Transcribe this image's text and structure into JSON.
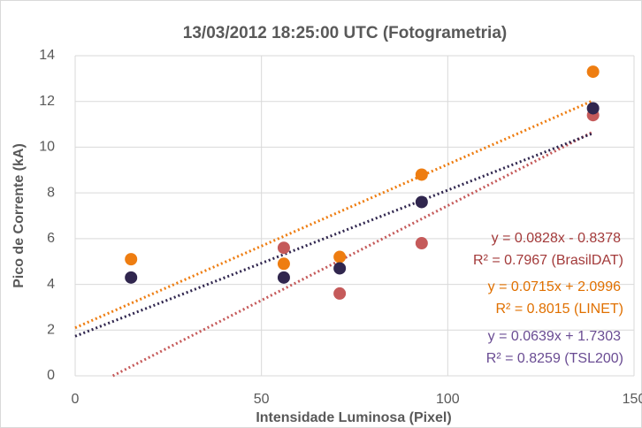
{
  "chart_data": {
    "type": "scatter",
    "title": "13/03/2012 18:25:00 UTC (Fotogrametria)",
    "xlabel": "Intensidade Luminosa (Pixel)",
    "ylabel": "Pico de Corrente (kA)",
    "xlim": [
      0,
      150
    ],
    "xticks": [
      0,
      50,
      100,
      150
    ],
    "ylim": [
      0,
      14
    ],
    "yticks": [
      0,
      2,
      4,
      6,
      8,
      10,
      12,
      14
    ],
    "grid": true,
    "series": [
      {
        "name": "BrasilDAT",
        "color": "#c55a5a",
        "label_color": "#a33a3a",
        "x": [
          56,
          71,
          93,
          139
        ],
        "values": [
          5.6,
          3.6,
          5.8,
          11.4
        ],
        "equation": "y = 0.0828x - 0.8378",
        "r_squared": "R² = 0.7967 (BrasilDAT)"
      },
      {
        "name": "LINET",
        "color": "#ee7d11",
        "label_color": "#e07000",
        "x": [
          15,
          56,
          71,
          93,
          139
        ],
        "values": [
          5.1,
          4.9,
          5.2,
          8.8,
          13.3
        ],
        "equation": "y = 0.0715x + 2.0996",
        "r_squared": "R² = 0.8015 (LINET)"
      },
      {
        "name": "TSL200",
        "color": "#30264e",
        "label_color": "#6a4c93",
        "x": [
          15,
          56,
          71,
          93,
          139
        ],
        "values": [
          4.3,
          4.3,
          4.7,
          7.6,
          11.7
        ],
        "equation": "y = 0.0639x + 1.7303",
        "r_squared": "R² = 0.8259 (TSL200)"
      }
    ]
  }
}
